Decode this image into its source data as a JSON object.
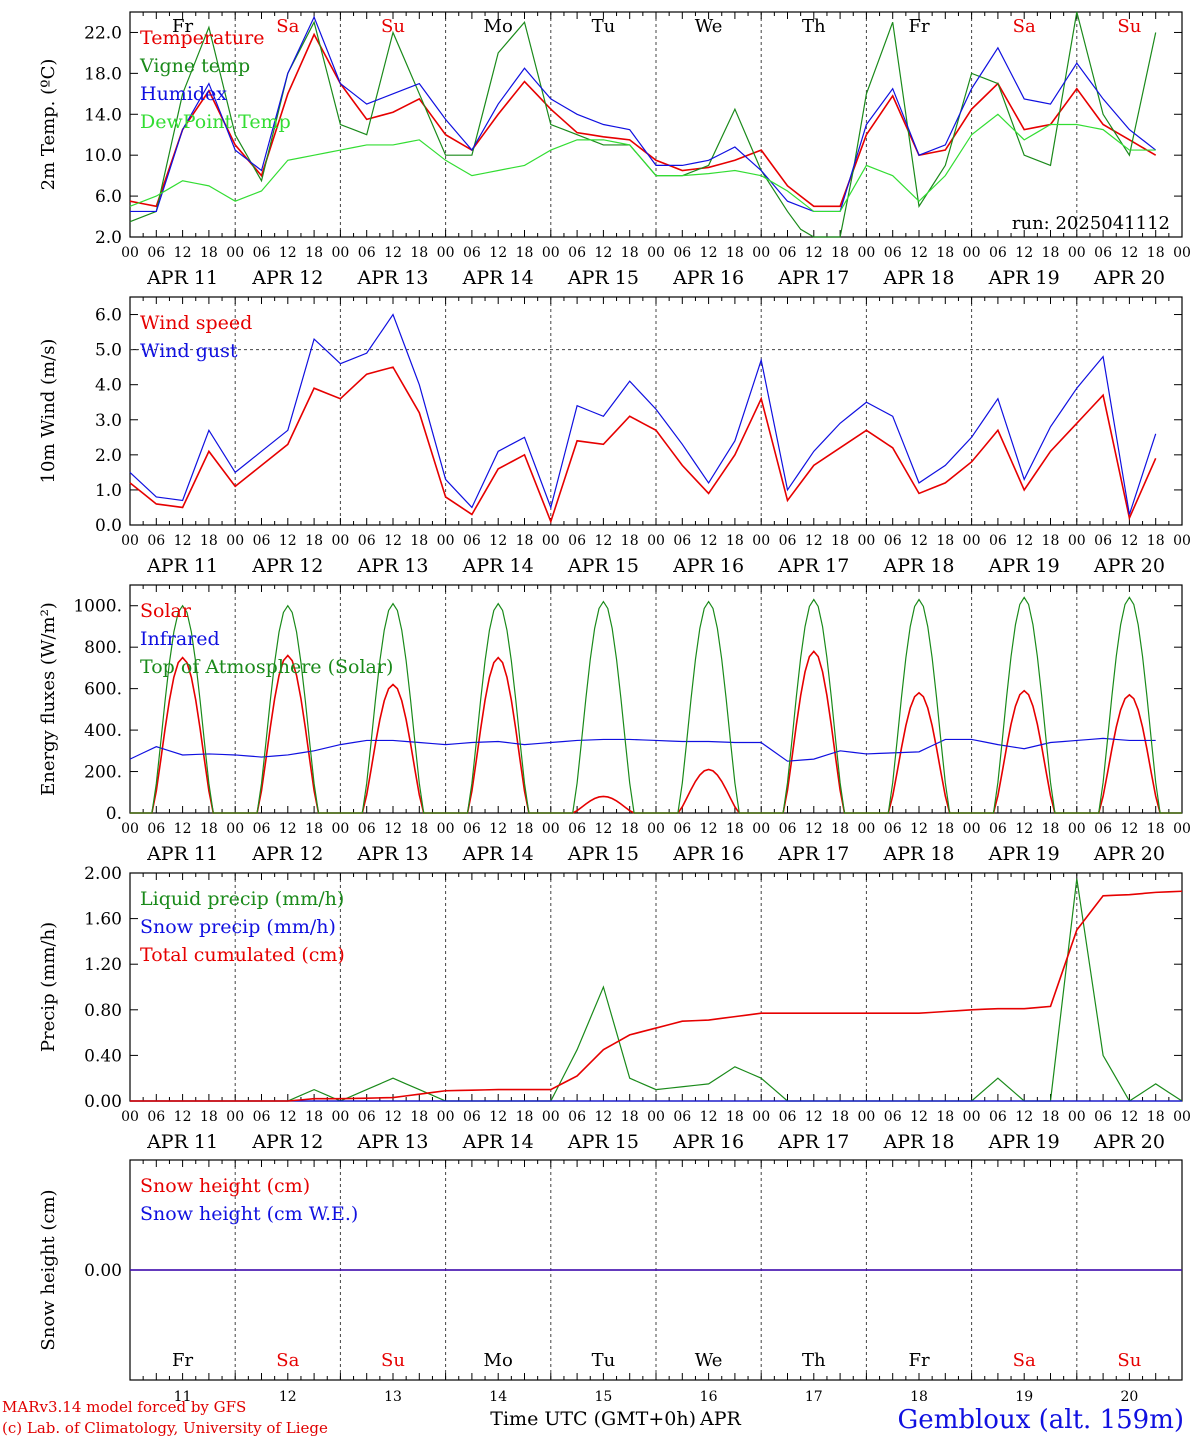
{
  "colors": {
    "red": "#e60000",
    "green": "#1a8a1a",
    "blue": "#1010e0",
    "lightgreen": "#33dd33",
    "axis": "#000000"
  },
  "days": [
    "APR 11",
    "APR 12",
    "APR 13",
    "APR 14",
    "APR 15",
    "APR 16",
    "APR 17",
    "APR 18",
    "APR 19",
    "APR 20"
  ],
  "weekdays": [
    {
      "label": "Fr",
      "weekend": false
    },
    {
      "label": "Sa",
      "weekend": true
    },
    {
      "label": "Su",
      "weekend": true
    },
    {
      "label": "Mo",
      "weekend": false
    },
    {
      "label": "Tu",
      "weekend": false
    },
    {
      "label": "We",
      "weekend": false
    },
    {
      "label": "Th",
      "weekend": false
    },
    {
      "label": "Fr",
      "weekend": false
    },
    {
      "label": "Sa",
      "weekend": true
    },
    {
      "label": "Su",
      "weekend": true
    }
  ],
  "hour_ticks": [
    "00",
    "06",
    "12",
    "18"
  ],
  "final_tick": "00",
  "day_numbers": [
    "11",
    "12",
    "13",
    "14",
    "15",
    "16",
    "17",
    "18",
    "19",
    "20"
  ],
  "footer": {
    "model": "MARv3.14 model forced by GFS",
    "copyright": "(c) Lab. of Climatology, University of Liege",
    "axis_title": "Time UTC (GMT+0h)",
    "month": "APR",
    "station": "Gembloux (alt. 159m)"
  },
  "chart_data": [
    {
      "type": "line",
      "ylabel": "2m Temp. (ºC)",
      "ylim": [
        2,
        24
      ],
      "yticks": [
        "2.0",
        "6.0",
        "10.0",
        "14.0",
        "18.0",
        "22.0"
      ],
      "ytick_values": [
        2,
        6,
        10,
        14,
        18,
        22
      ],
      "annotation": "run: 2025041112",
      "series": [
        {
          "name": "Temperature",
          "color": "red",
          "x": [
            0,
            6,
            12,
            18,
            24,
            30,
            36,
            42,
            48,
            54,
            60,
            66,
            72,
            78,
            84,
            90,
            96,
            102,
            108,
            114,
            120,
            126,
            132,
            138,
            144,
            150,
            156,
            162,
            168,
            174,
            180,
            186,
            192,
            198,
            204,
            210,
            216,
            222,
            228,
            234
          ],
          "values": [
            5.5,
            5.0,
            12.5,
            16.3,
            11.0,
            8.0,
            16.0,
            21.8,
            17.0,
            13.5,
            14.2,
            15.5,
            12.0,
            10.5,
            14.0,
            17.2,
            14.5,
            12.2,
            11.8,
            11.5,
            9.5,
            8.5,
            8.8,
            9.5,
            10.5,
            7.0,
            5.0,
            5.0,
            12.0,
            15.8,
            10.0,
            10.5,
            14.5,
            17.0,
            12.5,
            13.0,
            16.5,
            13.0,
            11.5,
            10.0
          ]
        },
        {
          "name": "Vigne temp",
          "color": "green",
          "x": [
            0,
            6,
            12,
            18,
            24,
            30,
            36,
            42,
            48,
            54,
            60,
            66,
            72,
            78,
            84,
            90,
            96,
            102,
            108,
            114,
            120,
            126,
            132,
            138,
            144,
            150,
            156,
            162,
            168,
            174,
            180,
            186,
            192,
            198,
            204,
            210,
            216,
            222,
            228,
            234
          ],
          "values": [
            3.5,
            4.5,
            16.0,
            22.5,
            12.0,
            7.5,
            18.0,
            23.0,
            13.0,
            12.0,
            22.0,
            16.0,
            10.0,
            10.0,
            20.0,
            23.0,
            13.0,
            12.0,
            11.0,
            11.0,
            8.0,
            8.0,
            9.0,
            14.5,
            8.5,
            4.5,
            1.0,
            1.0,
            16.0,
            23.0,
            5.0,
            9.0,
            18.0,
            17.0,
            10.0,
            9.0,
            24.0,
            14.0,
            10.0,
            22.0
          ]
        },
        {
          "name": "Humidex",
          "color": "blue",
          "x": [
            0,
            6,
            12,
            18,
            24,
            30,
            36,
            42,
            48,
            54,
            60,
            66,
            72,
            78,
            84,
            90,
            96,
            102,
            108,
            114,
            120,
            126,
            132,
            138,
            144,
            150,
            156,
            162,
            168,
            174,
            180,
            186,
            192,
            198,
            204,
            210,
            216,
            222,
            228,
            234
          ],
          "values": [
            4.5,
            4.5,
            12.5,
            17.0,
            10.5,
            8.5,
            18.0,
            23.5,
            17.0,
            15.0,
            16.0,
            17.0,
            13.5,
            10.5,
            15.0,
            18.5,
            15.5,
            14.0,
            13.0,
            12.5,
            9.0,
            9.0,
            9.5,
            10.8,
            8.5,
            5.5,
            4.5,
            4.5,
            13.0,
            16.5,
            10.0,
            11.0,
            16.5,
            20.5,
            15.5,
            15.0,
            19.0,
            15.5,
            12.5,
            10.5
          ]
        },
        {
          "name": "DewPoint Temp",
          "color": "lightgreen",
          "x": [
            0,
            6,
            12,
            18,
            24,
            30,
            36,
            42,
            48,
            54,
            60,
            66,
            72,
            78,
            84,
            90,
            96,
            102,
            108,
            114,
            120,
            126,
            132,
            138,
            144,
            150,
            156,
            162,
            168,
            174,
            180,
            186,
            192,
            198,
            204,
            210,
            216,
            222,
            228,
            234
          ],
          "values": [
            5.0,
            6.0,
            7.5,
            7.0,
            5.5,
            6.5,
            9.5,
            10.0,
            10.5,
            11.0,
            11.0,
            11.5,
            9.5,
            8.0,
            8.5,
            9.0,
            10.5,
            11.5,
            11.5,
            11.0,
            8.0,
            8.0,
            8.2,
            8.5,
            8.0,
            6.5,
            4.5,
            4.5,
            9.0,
            8.0,
            5.5,
            8.0,
            12.0,
            14.0,
            11.5,
            13.0,
            13.0,
            12.5,
            10.5,
            10.5
          ]
        }
      ]
    },
    {
      "type": "line",
      "ylabel": "10m Wind (m/s)",
      "ylim": [
        0,
        6.5
      ],
      "yticks": [
        "0.0",
        "1.0",
        "2.0",
        "3.0",
        "4.0",
        "5.0",
        "6.0"
      ],
      "ytick_values": [
        0,
        1,
        2,
        3,
        4,
        5,
        6
      ],
      "reference_line": 5,
      "series": [
        {
          "name": "Wind speed",
          "color": "red",
          "x": [
            0,
            6,
            12,
            18,
            24,
            30,
            36,
            42,
            48,
            54,
            60,
            66,
            72,
            78,
            84,
            90,
            96,
            102,
            108,
            114,
            120,
            126,
            132,
            138,
            144,
            150,
            156,
            162,
            168,
            174,
            180,
            186,
            192,
            198,
            204,
            210,
            216,
            222,
            228,
            234
          ],
          "values": [
            1.2,
            0.6,
            0.5,
            2.1,
            1.1,
            1.7,
            2.3,
            3.9,
            3.6,
            4.3,
            4.5,
            3.2,
            0.8,
            0.3,
            1.6,
            2.0,
            0.1,
            2.4,
            2.3,
            3.1,
            2.7,
            1.7,
            0.9,
            2.0,
            3.6,
            0.7,
            1.7,
            2.2,
            2.7,
            2.2,
            0.9,
            1.2,
            1.8,
            2.7,
            1.0,
            2.1,
            2.9,
            3.7,
            0.2,
            1.9
          ]
        },
        {
          "name": "Wind gust",
          "color": "blue",
          "x": [
            0,
            6,
            12,
            18,
            24,
            30,
            36,
            42,
            48,
            54,
            60,
            66,
            72,
            78,
            84,
            90,
            96,
            102,
            108,
            114,
            120,
            126,
            132,
            138,
            144,
            150,
            156,
            162,
            168,
            174,
            180,
            186,
            192,
            198,
            204,
            210,
            216,
            222,
            228,
            234
          ],
          "values": [
            1.5,
            0.8,
            0.7,
            2.7,
            1.5,
            2.1,
            2.7,
            5.3,
            4.6,
            4.9,
            6.0,
            4.0,
            1.3,
            0.5,
            2.1,
            2.5,
            0.5,
            3.4,
            3.1,
            4.1,
            3.3,
            2.3,
            1.2,
            2.4,
            4.7,
            1.0,
            2.1,
            2.9,
            3.5,
            3.1,
            1.2,
            1.7,
            2.5,
            3.6,
            1.3,
            2.8,
            3.9,
            4.8,
            0.3,
            2.6
          ]
        }
      ]
    },
    {
      "type": "line",
      "ylabel": "Energy fluxes (W/m²)",
      "ylim": [
        0,
        1100
      ],
      "yticks": [
        "0.",
        "200.",
        "400.",
        "600.",
        "800.",
        "1000."
      ],
      "ytick_values": [
        0,
        200,
        400,
        600,
        800,
        1000
      ],
      "series": [
        {
          "name": "Solar",
          "color": "red",
          "daily_peaks": [
            750,
            760,
            620,
            750,
            80,
            210,
            780,
            580,
            590,
            570
          ]
        },
        {
          "name": "Infrared",
          "color": "blue",
          "x": [
            0,
            6,
            12,
            18,
            24,
            30,
            36,
            42,
            48,
            54,
            60,
            66,
            72,
            78,
            84,
            90,
            96,
            102,
            108,
            114,
            120,
            126,
            132,
            138,
            144,
            150,
            156,
            162,
            168,
            174,
            180,
            186,
            192,
            198,
            204,
            210,
            216,
            222,
            228,
            234
          ],
          "values": [
            260,
            320,
            280,
            285,
            280,
            270,
            280,
            300,
            330,
            350,
            350,
            340,
            330,
            340,
            345,
            330,
            340,
            350,
            355,
            355,
            350,
            345,
            345,
            340,
            340,
            250,
            260,
            300,
            285,
            290,
            295,
            355,
            355,
            330,
            310,
            340,
            350,
            360,
            350,
            350
          ]
        },
        {
          "name": "Top of Atmosphere (Solar)",
          "color": "green",
          "daily_peaks": [
            1000,
            1000,
            1010,
            1010,
            1020,
            1020,
            1030,
            1030,
            1040,
            1040
          ]
        }
      ]
    },
    {
      "type": "line",
      "ylabel": "Precip (mm/h)",
      "ylim": [
        0,
        2.0
      ],
      "yticks": [
        "0.00",
        "0.40",
        "0.80",
        "1.20",
        "1.60",
        "2.00"
      ],
      "ytick_values": [
        0,
        0.4,
        0.8,
        1.2,
        1.6,
        2.0
      ],
      "series": [
        {
          "name": "Liquid precip (mm/h)",
          "color": "green",
          "x": [
            0,
            36,
            42,
            48,
            60,
            66,
            72,
            96,
            102,
            108,
            114,
            120,
            132,
            138,
            144,
            150,
            168,
            192,
            198,
            204,
            210,
            216,
            222,
            228,
            234,
            240
          ],
          "values": [
            0,
            0,
            0.1,
            0,
            0.2,
            0.1,
            0,
            0,
            0.45,
            1.0,
            0.2,
            0.1,
            0.15,
            0.3,
            0.2,
            0,
            0,
            0,
            0.2,
            0,
            0,
            1.95,
            0.4,
            0,
            0.15,
            0
          ]
        },
        {
          "name": "Snow precip (mm/h)",
          "color": "blue",
          "x": [
            0,
            240
          ],
          "values": [
            0,
            0
          ]
        },
        {
          "name": "Total cumulated (cm)",
          "color": "red",
          "x": [
            0,
            36,
            42,
            48,
            60,
            66,
            72,
            84,
            96,
            102,
            108,
            114,
            120,
            126,
            132,
            138,
            144,
            150,
            156,
            168,
            180,
            192,
            198,
            204,
            210,
            216,
            222,
            228,
            234,
            240
          ],
          "values": [
            0,
            0,
            0.02,
            0.02,
            0.03,
            0.06,
            0.09,
            0.1,
            0.1,
            0.22,
            0.45,
            0.58,
            0.64,
            0.7,
            0.71,
            0.74,
            0.77,
            0.77,
            0.77,
            0.77,
            0.77,
            0.8,
            0.81,
            0.81,
            0.83,
            1.5,
            1.8,
            1.81,
            1.83,
            1.84
          ]
        }
      ]
    },
    {
      "type": "line",
      "ylabel": "Snow height (cm)",
      "ylim": [
        -1,
        1
      ],
      "yticks": [
        "0.00"
      ],
      "ytick_values": [
        0
      ],
      "series": [
        {
          "name": "Snow height (cm)",
          "color": "red",
          "x": [
            0,
            240
          ],
          "values": [
            0,
            0
          ]
        },
        {
          "name": "Snow height (cm W.E.)",
          "color": "blue",
          "x": [
            0,
            240
          ],
          "values": [
            0,
            0
          ]
        }
      ]
    }
  ]
}
